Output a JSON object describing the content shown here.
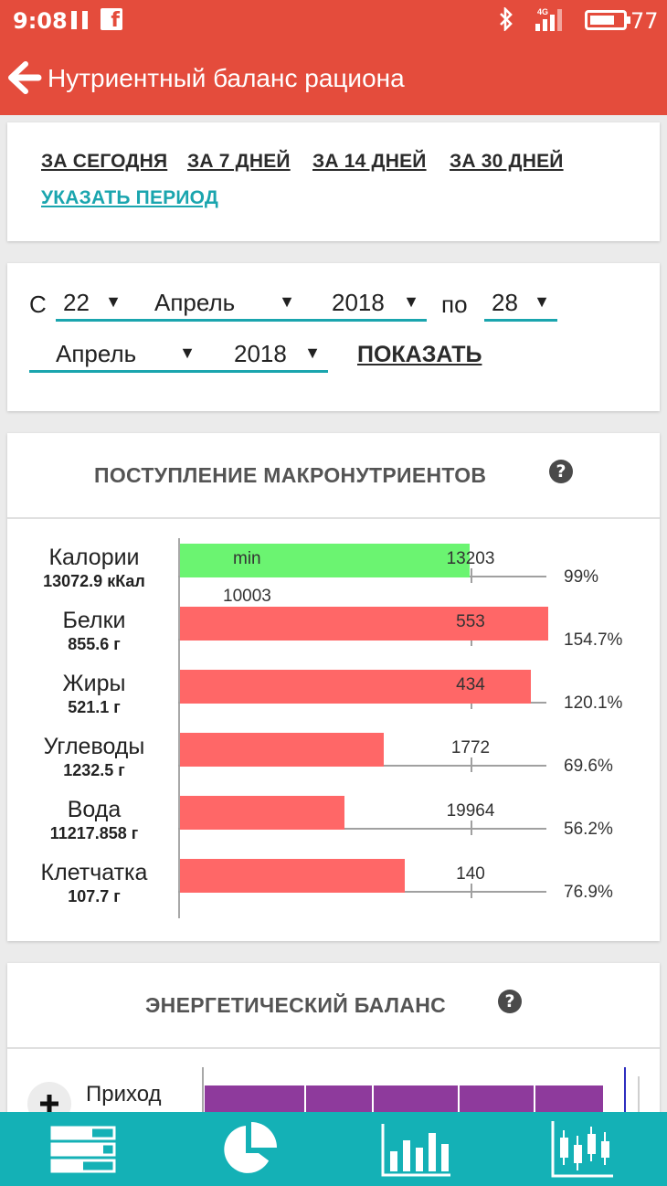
{
  "status": {
    "time": "9:08",
    "network": "4G",
    "battery": "77",
    "battery_level": 0.77
  },
  "appbar": {
    "title": "Нутриентный баланс рациона"
  },
  "period": {
    "today": "ЗА СЕГОДНЯ",
    "days7": "ЗА 7 ДНЕЙ",
    "days14": "ЗА 14 ДНЕЙ",
    "days30": "ЗА 30 ДНЕЙ",
    "custom": "УКАЗАТЬ ПЕРИОД"
  },
  "range": {
    "from_label": "С",
    "to_label": "по",
    "from_day": "22",
    "from_month": "Апрель",
    "from_year": "2018",
    "to_day": "28",
    "to_month": "Апрель",
    "to_year": "2018",
    "show_label": "ПОКАЗАТЬ"
  },
  "macro": {
    "title": "ПОСТУПЛЕНИЕ МАКРОНУТРИЕНТОВ",
    "min_label": "min",
    "items": [
      {
        "name": "Калории",
        "amount": "13072.9 кКал",
        "norm": "13203",
        "min": "10003",
        "percent": "99%",
        "bar_pct": 99,
        "color": "#6bf471"
      },
      {
        "name": "Белки",
        "amount": "855.6 г",
        "norm": "553",
        "percent": "154.7%",
        "bar_pct": 154.7,
        "color": "#ff6767"
      },
      {
        "name": "Жиры",
        "amount": "521.1 г",
        "norm": "434",
        "percent": "120.1%",
        "bar_pct": 120.1,
        "color": "#ff6767"
      },
      {
        "name": "Углеводы",
        "amount": "1232.5 г",
        "norm": "1772",
        "percent": "69.6%",
        "bar_pct": 69.6,
        "color": "#ff6767"
      },
      {
        "name": "Вода",
        "amount": "11217.858 г",
        "norm": "19964",
        "percent": "56.2%",
        "bar_pct": 56.2,
        "color": "#ff6767"
      },
      {
        "name": "Клетчатка",
        "amount": "107.7 г",
        "norm": "140",
        "percent": "76.9%",
        "bar_pct": 76.9,
        "color": "#ff6767"
      }
    ]
  },
  "energy": {
    "title": "ЭНЕРГЕТИЧЕСКИЙ БАЛАНС",
    "income_label": "Приход",
    "bar_color": "#8e3a9c"
  },
  "nav": {
    "items": [
      "list-icon",
      "pie-chart-icon",
      "bar-chart-icon",
      "candlestick-chart-icon"
    ]
  }
}
